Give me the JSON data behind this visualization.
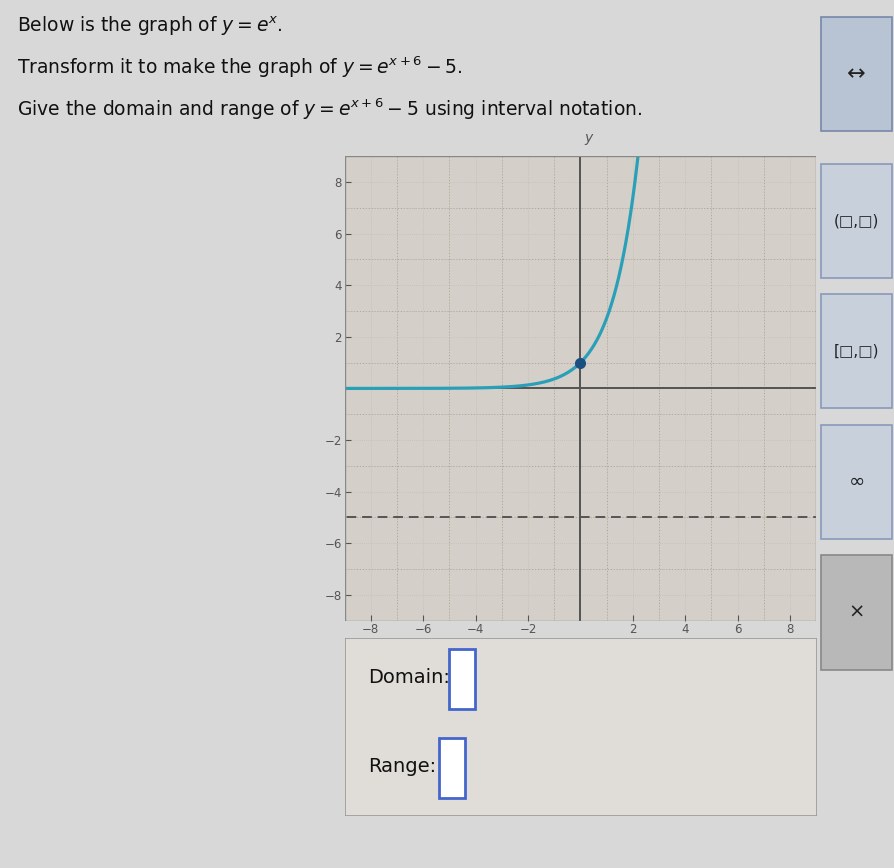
{
  "title_lines": [
    "Below is the graph of $y=e^x$.",
    "Transform it to make the graph of $y=e^{x+6}-5$.",
    "Give the domain and range of $y=e^{x+6}-5$ using interval notation."
  ],
  "curve_color": "#2aa0b8",
  "asymptote_color": "#555555",
  "point_color": "#1a5080",
  "point_x": 0,
  "point_y": 1,
  "bg_color": "#d8d8d8",
  "graph_bg": "#d4cfc8",
  "graph_border": "#888888",
  "xlim": [
    -9,
    9
  ],
  "ylim": [
    -9,
    9
  ],
  "xticks": [
    -8,
    -6,
    -4,
    -2,
    2,
    4,
    6,
    8
  ],
  "yticks": [
    -8,
    -6,
    -4,
    -2,
    2,
    4,
    6,
    8
  ],
  "grid_minor_color": "#bfb8b0",
  "grid_major_color": "#b0a898",
  "axis_color": "#555555",
  "tick_label_color": "#555555",
  "domain_label": "Domain:",
  "range_label": "Range:",
  "answer_box_color": "#4466cc",
  "asymptote_y": -5,
  "shift_x": -6,
  "shift_y": -5,
  "bottom_box_bg": "#e0ddd8",
  "bottom_box_border": "#999999",
  "right_btn_bg": "#c8d0dc",
  "right_btn_border": "#8899bb",
  "right_x_bg": "#b8b8b8",
  "right_arrow_bg": "#b8c4d4"
}
